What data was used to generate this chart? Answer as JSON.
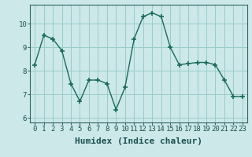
{
  "x": [
    0,
    1,
    2,
    3,
    4,
    5,
    6,
    7,
    8,
    9,
    10,
    11,
    12,
    13,
    14,
    15,
    16,
    17,
    18,
    19,
    20,
    21,
    22,
    23
  ],
  "y": [
    8.25,
    9.5,
    9.35,
    8.85,
    7.45,
    6.7,
    7.6,
    7.6,
    7.45,
    6.35,
    7.3,
    9.35,
    10.3,
    10.45,
    10.3,
    9.0,
    8.25,
    8.3,
    8.35,
    8.35,
    8.25,
    7.6,
    6.9,
    6.9
  ],
  "line_color": "#1a6b5a",
  "marker": "+",
  "marker_size": 4,
  "marker_linewidth": 1.2,
  "linewidth": 1.0,
  "xlabel": "Humidex (Indice chaleur)",
  "xlabel_fontsize": 8,
  "xlim": [
    -0.5,
    23.5
  ],
  "ylim": [
    5.8,
    10.8
  ],
  "yticks": [
    6,
    7,
    8,
    9,
    10
  ],
  "xticks": [
    0,
    1,
    2,
    3,
    4,
    5,
    6,
    7,
    8,
    9,
    10,
    11,
    12,
    13,
    14,
    15,
    16,
    17,
    18,
    19,
    20,
    21,
    22,
    23
  ],
  "xtick_labels": [
    "0",
    "1",
    "2",
    "3",
    "4",
    "5",
    "6",
    "7",
    "8",
    "9",
    "10",
    "11",
    "12",
    "13",
    "14",
    "15",
    "16",
    "17",
    "18",
    "19",
    "20",
    "21",
    "22",
    "23"
  ],
  "bg_color": "#cce8e8",
  "grid_color": "#99cccc",
  "tick_fontsize": 6.5,
  "spine_color": "#336666",
  "text_color": "#1a5050"
}
